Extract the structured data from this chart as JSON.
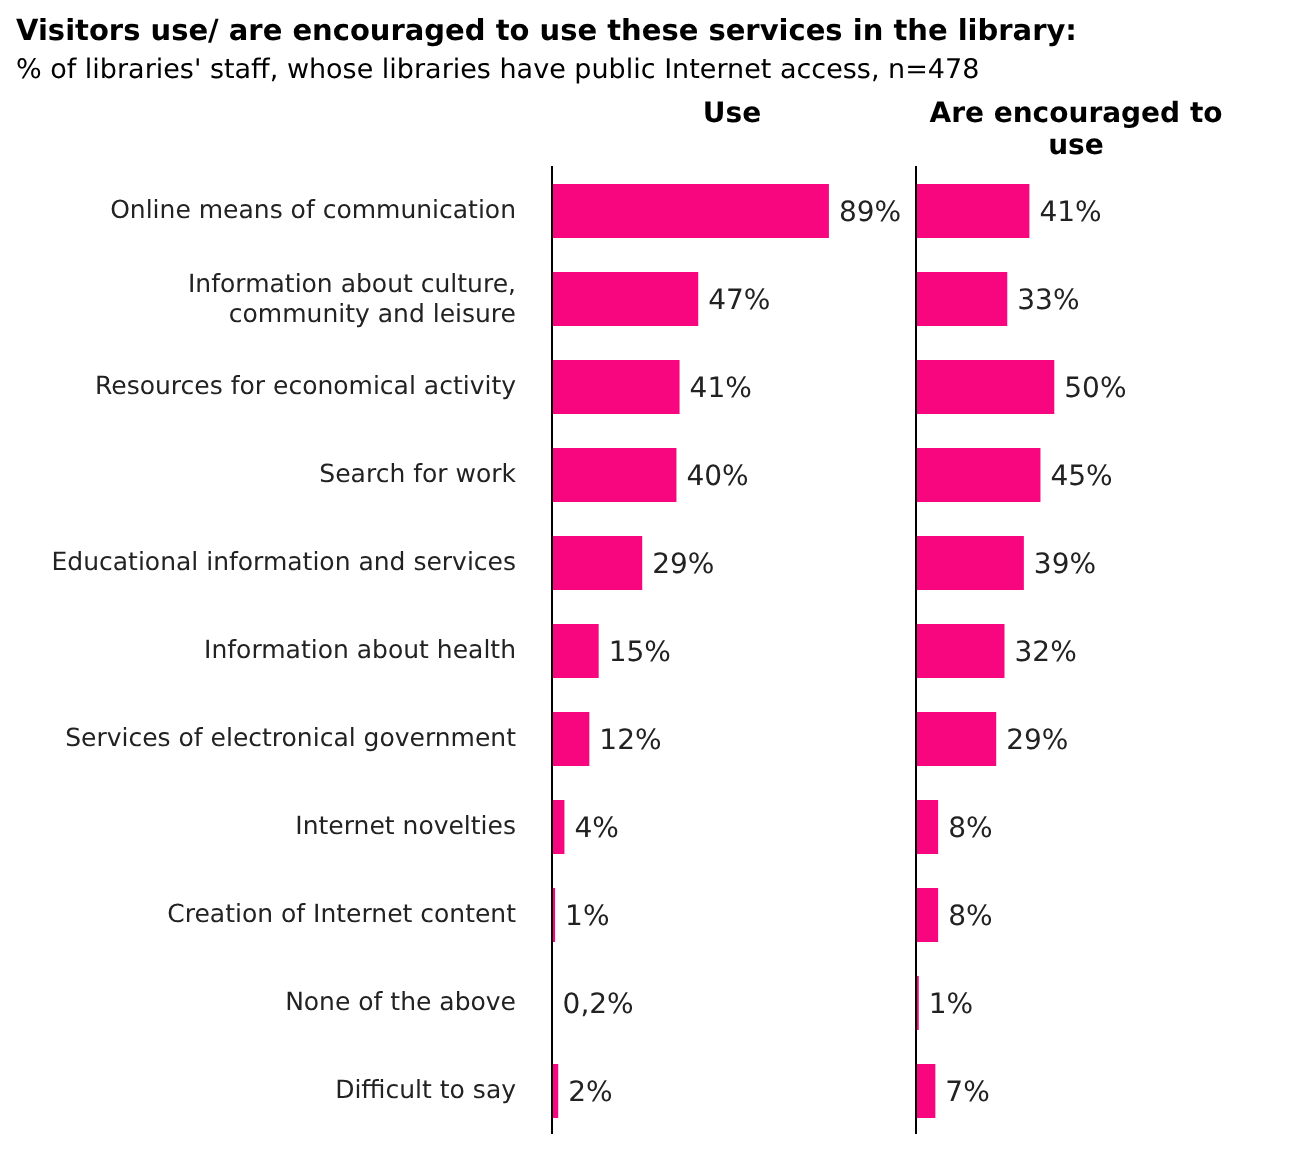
{
  "chart_data": [
    {
      "type": "bar",
      "orientation": "horizontal",
      "title": "Visitors use/ are encouraged to use these services in the library:",
      "subtitle": "% of libraries' staff, whose libraries have public Internet access, n=478",
      "xlabel": "Use",
      "tick_labels": "y",
      "color": "#f7067f",
      "categories": [
        "Online means of communication",
        "Information about culture, community and leisure",
        "Resources for economical activity",
        "Search for work",
        "Educational information and services",
        "Information about health",
        "Services of electronical government",
        "Internet novelties",
        "Creation of Internet content",
        "None of the above",
        "Difficult to say"
      ],
      "values": [
        89,
        47,
        41,
        40,
        29,
        15,
        12,
        4,
        1,
        0.2,
        2
      ],
      "value_labels": [
        "89%",
        "47%",
        "41%",
        "40%",
        "29%",
        "15%",
        "12%",
        "4%",
        "1%",
        "0,2%",
        "2%"
      ]
    },
    {
      "type": "bar",
      "orientation": "horizontal",
      "xlabel": "Are encouraged to use",
      "tick_labels": false,
      "color": "#f7067f",
      "categories": [
        null,
        null,
        null,
        null,
        null,
        null,
        null,
        null,
        null,
        null,
        null
      ],
      "values": [
        41,
        33,
        50,
        45,
        39,
        32,
        29,
        8,
        8,
        1,
        7
      ],
      "value_labels": [
        "41%",
        "33%",
        "50%",
        "45%",
        "39%",
        "32%",
        "29%",
        "8%",
        "8%",
        "1%",
        "7%"
      ]
    }
  ]
}
